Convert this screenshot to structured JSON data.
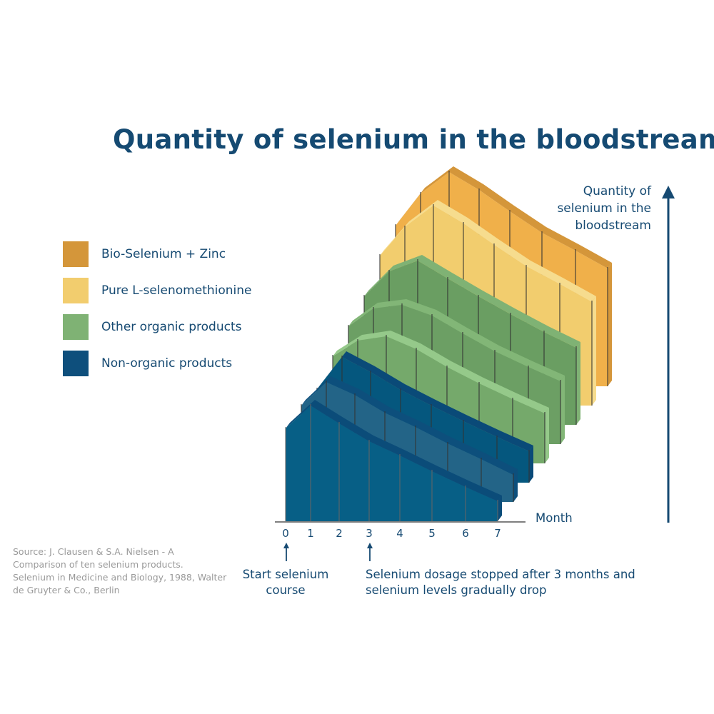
{
  "chart_data": {
    "type": "area",
    "subtype": "3d-ribbon",
    "title": "Quantity of selenium in the bloodstream",
    "xlabel": "Month",
    "ylabel": "Quantity of selenium in the bloodstream",
    "categories": [
      "0",
      "1",
      "2",
      "3",
      "4",
      "5",
      "6",
      "7"
    ],
    "y_scale_shown": false,
    "grid": false,
    "legend_placement": "left",
    "legend": [
      {
        "label": "Bio-Selenium + Zinc",
        "color": "#d4963a"
      },
      {
        "label": "Pure L-selenomethionine",
        "color": "#f2cd6e"
      },
      {
        "label": "Other organic products",
        "color": "#7fb274"
      },
      {
        "label": "Non-organic products",
        "color": "#0e4f7c"
      }
    ],
    "series": [
      {
        "group": "Bio-Selenium + Zinc",
        "values": [
          225,
          270,
          300,
          275,
          245,
          215,
          190,
          165
        ],
        "color": "#f0b04a",
        "top": "#d4963a"
      },
      {
        "group": "Pure L-selenomethionine",
        "values": [
          210,
          250,
          280,
          255,
          225,
          195,
          170,
          145
        ],
        "color": "#f2cd6e",
        "top": "#f6dc8e"
      },
      {
        "group": "Other organic products",
        "values": [
          180,
          215,
          230,
          205,
          180,
          155,
          130,
          108
        ],
        "color": "#6a9e62",
        "top": "#7fb274"
      },
      {
        "group": "Other organic products",
        "values": [
          165,
          190,
          195,
          180,
          155,
          130,
          108,
          88
        ],
        "color": "#6c9f64",
        "top": "#82b677"
      },
      {
        "group": "Other organic products",
        "values": [
          150,
          172,
          178,
          160,
          135,
          112,
          90,
          70
        ],
        "color": "#75a96b",
        "top": "#95c98a"
      },
      {
        "group": "Non-organic products",
        "values": [
          131,
          176,
          155,
          130,
          108,
          86,
          64,
          44
        ],
        "color": "#05577e",
        "top": "#0a4a78"
      },
      {
        "group": "Non-organic products",
        "values": [
          135,
          168,
          150,
          125,
          105,
          82,
          60,
          38
        ],
        "color": "#236487",
        "top": "#0d4f7c"
      },
      {
        "group": "Non-organic products",
        "values": [
          130,
          162,
          137,
          112,
          92,
          70,
          48,
          28
        ],
        "color": "#075f86",
        "top": "#0b4c79"
      }
    ],
    "annotations": [
      {
        "month": "0",
        "text": "Start selenium course"
      },
      {
        "month": "3",
        "text": "Selenium dosage stopped after 3 months and selenium levels gradually drop"
      }
    ]
  },
  "source": "Source: J. Clausen & S.A. Nielsen - A Comparison of ten selenium products. Selenium in Medicine and Biology, 1988, Walter de Gruyter & Co., Berlin",
  "notes": {
    "start": "Start selenium course",
    "stop": "Selenium dosage stopped after 3 months and selenium levels gradually drop"
  }
}
